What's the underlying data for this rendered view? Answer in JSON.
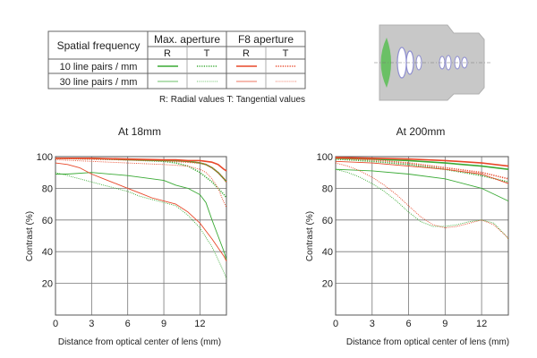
{
  "legend_table": {
    "row_header": "Spatial frequency",
    "group_headers": [
      "Max. aperture",
      "F8 aperture"
    ],
    "sub_headers": [
      "R",
      "T",
      "R",
      "T"
    ],
    "rows": [
      "10 line pairs / mm",
      "30 line pairs / mm"
    ],
    "note": "R: Radial values  T: Tangential values",
    "colors": {
      "max_aperture": "#3aaa35",
      "f8_aperture": "#e8482a"
    }
  },
  "diagram": {
    "icon": "lens-cross-section-diagram",
    "colors": {
      "body": "#c8c8c8",
      "glass": "#8f8fd0"
    }
  },
  "chart_data": [
    {
      "type": "line",
      "title": "At 18mm",
      "xlabel": "Distance from optical center of lens (mm)",
      "ylabel": "Contrast (%)",
      "xlim": [
        0,
        14.2
      ],
      "ylim": [
        0,
        100
      ],
      "xticks": [
        0,
        3,
        6,
        9,
        12
      ],
      "yticks": [
        20,
        40,
        60,
        80,
        100
      ],
      "grid": true,
      "series": [
        {
          "aperture": "Max. aperture",
          "frequency": "10 line pairs / mm",
          "component": "R",
          "color": "#3aaa35",
          "style": "solid",
          "x": [
            0,
            3,
            6,
            9,
            10,
            11,
            12,
            12.5,
            13,
            13.5,
            14,
            14.2
          ],
          "y": [
            99,
            99,
            98,
            97.5,
            97.5,
            97,
            96,
            95,
            93,
            90,
            86,
            84
          ]
        },
        {
          "aperture": "Max. aperture",
          "frequency": "10 line pairs / mm",
          "component": "T",
          "color": "#3aaa35",
          "style": "dotted",
          "x": [
            0,
            3,
            6,
            9,
            10,
            11,
            12,
            12.5,
            13,
            13.5,
            14,
            14.2
          ],
          "y": [
            99,
            98.5,
            98,
            97,
            96,
            94,
            90,
            87,
            84,
            80,
            76,
            74
          ]
        },
        {
          "aperture": "Max. aperture",
          "frequency": "30 line pairs / mm",
          "component": "R",
          "color": "#3aaa35",
          "style": "solid",
          "x": [
            0,
            1,
            3,
            6,
            9,
            10,
            11,
            12,
            12.5,
            13,
            13.5,
            14,
            14.2
          ],
          "y": [
            89,
            89,
            90,
            88,
            85,
            82,
            80,
            76,
            71,
            60,
            50,
            40,
            35
          ]
        },
        {
          "aperture": "Max. aperture",
          "frequency": "30 line pairs / mm",
          "component": "T",
          "color": "#3aaa35",
          "style": "dotted",
          "x": [
            0,
            1,
            2,
            3,
            4,
            5,
            6,
            7,
            8,
            9,
            10,
            11,
            12,
            13,
            14,
            14.2
          ],
          "y": [
            90,
            88,
            86,
            84,
            82,
            80,
            78,
            75,
            73,
            71,
            69,
            63,
            55,
            43,
            27,
            23
          ]
        },
        {
          "aperture": "F8 aperture",
          "frequency": "10 line pairs / mm",
          "component": "R",
          "color": "#e8482a",
          "style": "solid",
          "x": [
            0,
            3,
            6,
            9,
            10,
            11,
            12,
            12.5,
            13,
            13.5,
            14,
            14.2
          ],
          "y": [
            99,
            99,
            98.5,
            98,
            98,
            97.5,
            97.5,
            97,
            96.5,
            95,
            92,
            91
          ]
        },
        {
          "aperture": "F8 aperture",
          "frequency": "10 line pairs / mm",
          "component": "T",
          "color": "#e8482a",
          "style": "dotted",
          "x": [
            0,
            3,
            6,
            9,
            10,
            11,
            12,
            12.5,
            13,
            13.5,
            14,
            14.2
          ],
          "y": [
            99,
            98.5,
            98,
            97.5,
            97,
            96.5,
            96,
            95,
            93,
            90,
            86,
            84
          ]
        },
        {
          "aperture": "F8 aperture",
          "frequency": "30 line pairs / mm",
          "component": "R",
          "color": "#e8482a",
          "style": "solid",
          "x": [
            0,
            1,
            2,
            3,
            4,
            5,
            6,
            7,
            8,
            9,
            10,
            11,
            12,
            13,
            14,
            14.2
          ],
          "y": [
            96,
            95,
            93,
            89,
            86,
            83,
            80,
            77,
            74,
            72,
            70,
            65,
            58,
            48,
            37,
            34
          ]
        },
        {
          "aperture": "F8 aperture",
          "frequency": "30 line pairs / mm",
          "component": "T",
          "color": "#e8482a",
          "style": "dotted",
          "x": [
            0,
            3,
            6,
            9,
            10,
            11,
            12,
            12.5,
            13,
            13.5,
            14,
            14.2
          ],
          "y": [
            98,
            97,
            96,
            95,
            94.5,
            94,
            92,
            90,
            86,
            80,
            71,
            68
          ]
        }
      ]
    },
    {
      "type": "line",
      "title": "At 200mm",
      "xlabel": "Distance from optical center of lens (mm)",
      "ylabel": "Contrast (%)",
      "xlim": [
        0,
        14.2
      ],
      "ylim": [
        0,
        100
      ],
      "xticks": [
        0,
        3,
        6,
        9,
        12
      ],
      "yticks": [
        20,
        40,
        60,
        80,
        100
      ],
      "grid": true,
      "series": [
        {
          "aperture": "Max. aperture",
          "frequency": "10 line pairs / mm",
          "component": "R",
          "color": "#3aaa35",
          "style": "solid",
          "x": [
            0,
            3,
            6,
            9,
            12,
            14.2
          ],
          "y": [
            99,
            98.5,
            97.5,
            96,
            94,
            92
          ]
        },
        {
          "aperture": "Max. aperture",
          "frequency": "10 line pairs / mm",
          "component": "T",
          "color": "#3aaa35",
          "style": "dotted",
          "x": [
            0,
            3,
            6,
            9,
            12,
            14.2
          ],
          "y": [
            98.5,
            97,
            95,
            92,
            88,
            84
          ]
        },
        {
          "aperture": "Max. aperture",
          "frequency": "30 line pairs / mm",
          "component": "R",
          "color": "#3aaa35",
          "style": "solid",
          "x": [
            0,
            3,
            6,
            9,
            12,
            14.2
          ],
          "y": [
            92,
            91,
            89,
            86,
            80,
            72
          ]
        },
        {
          "aperture": "Max. aperture",
          "frequency": "30 line pairs / mm",
          "component": "T",
          "color": "#3aaa35",
          "style": "dotted",
          "x": [
            0,
            1,
            2,
            3,
            4,
            5,
            6,
            7,
            8,
            9,
            10,
            11,
            12,
            13,
            14,
            14.2
          ],
          "y": [
            92,
            90,
            87,
            83,
            78,
            72,
            65,
            59,
            56,
            56,
            57,
            59,
            60,
            58,
            50,
            48
          ]
        },
        {
          "aperture": "F8 aperture",
          "frequency": "10 line pairs / mm",
          "component": "R",
          "color": "#e8482a",
          "style": "solid",
          "x": [
            0,
            3,
            6,
            9,
            12,
            14.2
          ],
          "y": [
            99.5,
            99,
            98.5,
            97.5,
            96,
            94
          ]
        },
        {
          "aperture": "F8 aperture",
          "frequency": "10 line pairs / mm",
          "component": "T",
          "color": "#e8482a",
          "style": "dotted",
          "x": [
            0,
            3,
            6,
            9,
            12,
            14.2
          ],
          "y": [
            99,
            98,
            96,
            93,
            90,
            86
          ]
        },
        {
          "aperture": "F8 aperture",
          "frequency": "30 line pairs / mm",
          "component": "R",
          "color": "#e8482a",
          "style": "solid",
          "x": [
            0,
            3,
            6,
            9,
            12,
            14.2
          ],
          "y": [
            97,
            96,
            94,
            92,
            89,
            83
          ]
        },
        {
          "aperture": "F8 aperture",
          "frequency": "30 line pairs / mm",
          "component": "T",
          "color": "#e8482a",
          "style": "dotted",
          "x": [
            0,
            1,
            2,
            3,
            4,
            5,
            6,
            7,
            8,
            9,
            10,
            11,
            12,
            13,
            14,
            14.2
          ],
          "y": [
            96,
            94,
            91,
            87,
            82,
            76,
            69,
            62,
            57,
            55,
            56,
            58,
            60,
            57,
            50,
            48
          ]
        }
      ]
    }
  ]
}
